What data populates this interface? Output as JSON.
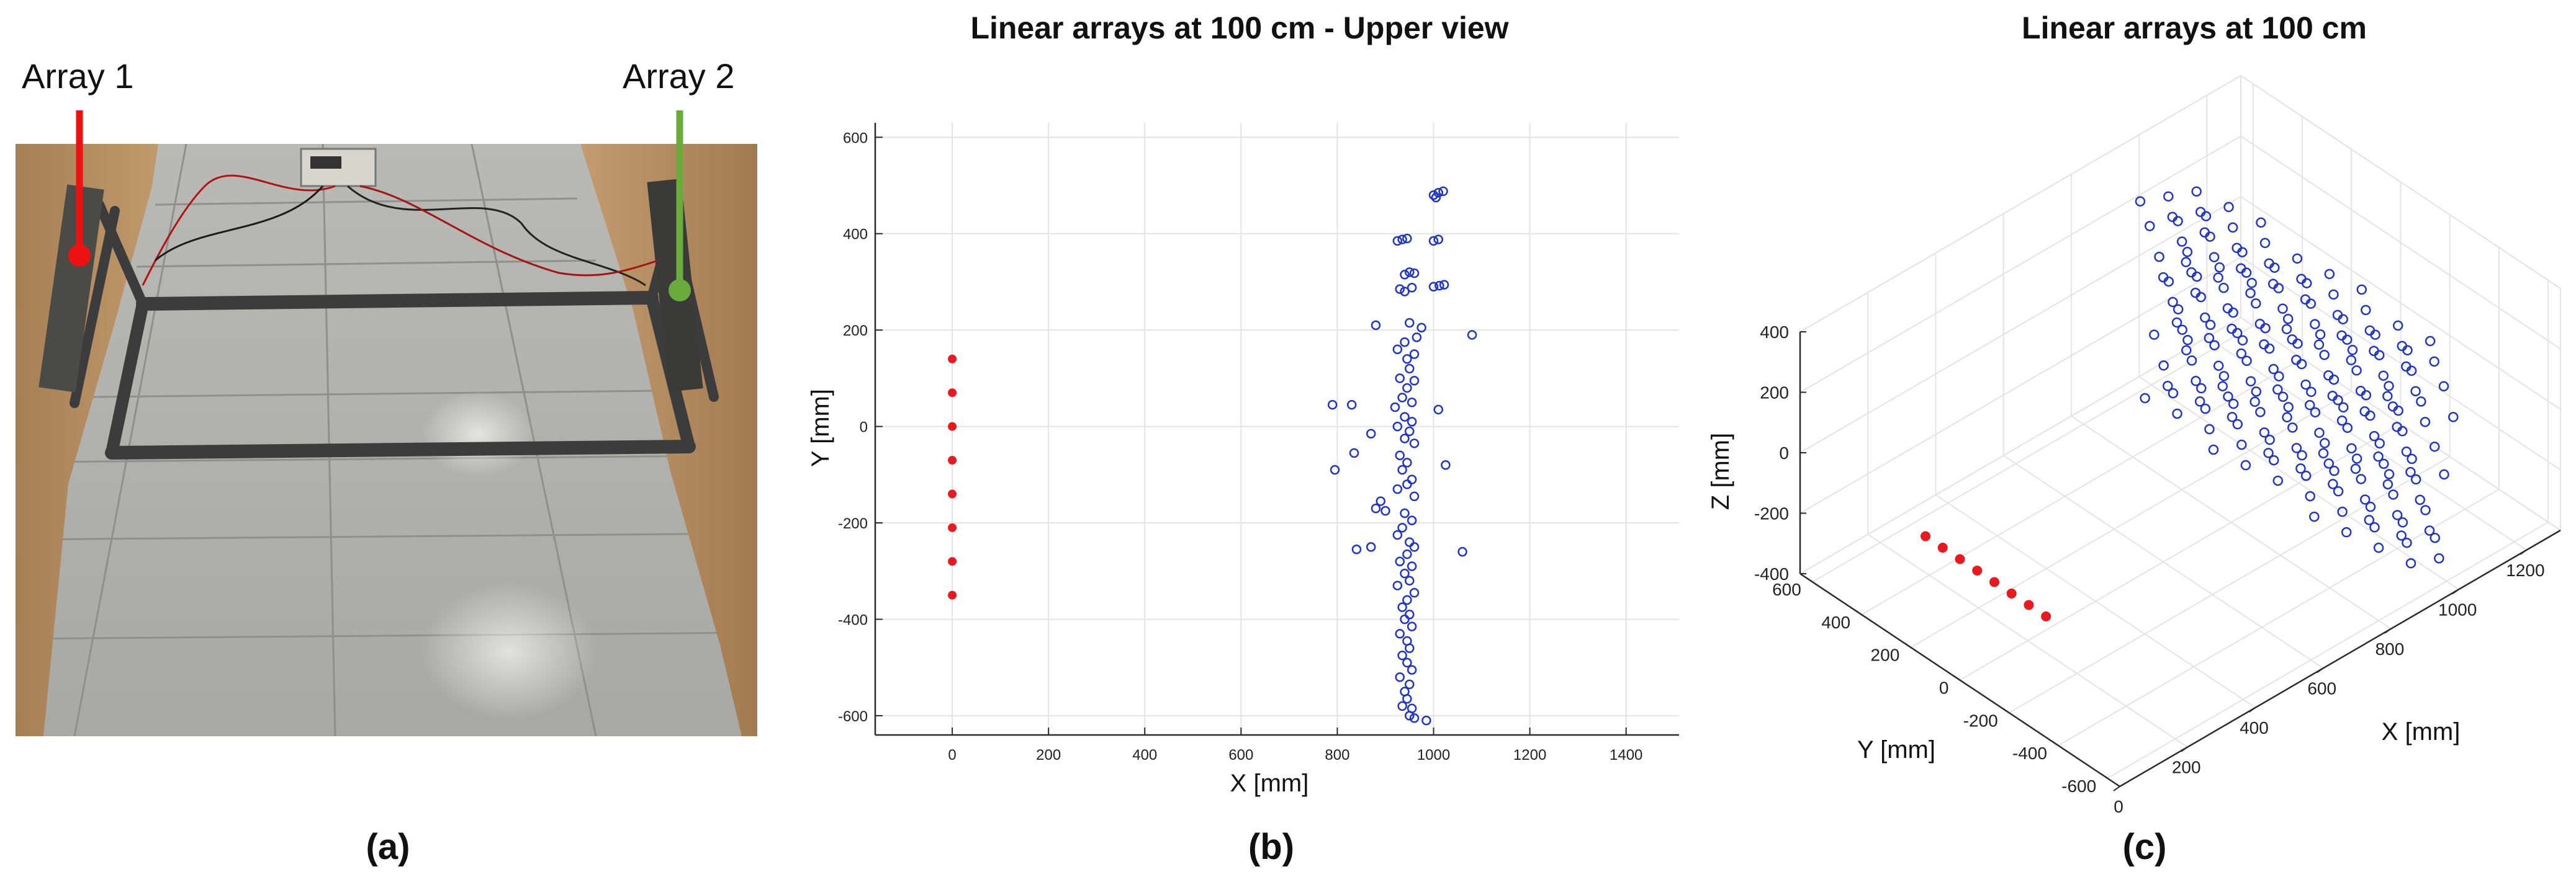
{
  "panel_a": {
    "caption": "(a)",
    "array1_label": "Array 1",
    "array2_label": "Array 2",
    "array1_color": "#ee1111",
    "array2_color": "#6aab3c"
  },
  "panel_b": {
    "caption": "(b)",
    "title": "Linear arrays at 100 cm - Upper view",
    "xlabel": "X [mm]",
    "ylabel": "Y [mm]",
    "xticks": [
      0,
      200,
      400,
      600,
      800,
      1000,
      1200,
      1400
    ],
    "yticks": [
      -600,
      -400,
      -200,
      0,
      200,
      400,
      600
    ]
  },
  "panel_c": {
    "caption": "(c)",
    "title": "Linear arrays at 100 cm",
    "xlabel": "X [mm]",
    "ylabel": "Y [mm]",
    "zlabel": "Z [mm]",
    "xticks": [
      0,
      200,
      400,
      600,
      800,
      1000,
      1200
    ],
    "yticks": [
      -600,
      -400,
      -200,
      0,
      200,
      400,
      600
    ],
    "zticks": [
      -400,
      -200,
      0,
      200,
      400
    ]
  },
  "colors": {
    "sensors": "#e8191f",
    "points": "#1f35c8",
    "grid": "#e4e4e4",
    "axis": "#2b2b2b"
  },
  "chart_data": [
    {
      "type": "scatter",
      "title": "Linear arrays at 100 cm - Upper view",
      "xlabel": "X [mm]",
      "ylabel": "Y [mm]",
      "xlim": [
        -160,
        1510
      ],
      "ylim": [
        -640,
        630
      ],
      "grid": true,
      "series": [
        {
          "marker": "filled-dot",
          "color": "#e8191f",
          "points": [
            [
              0,
              140
            ],
            [
              0,
              70
            ],
            [
              0,
              0
            ],
            [
              0,
              -70
            ],
            [
              0,
              -140
            ],
            [
              0,
              -210
            ],
            [
              0,
              -280
            ],
            [
              0,
              -350
            ]
          ]
        },
        {
          "marker": "open-circle",
          "color": "#1f35c8",
          "points": [
            [
              1000,
              480
            ],
            [
              1010,
              485
            ],
            [
              1020,
              488
            ],
            [
              1005,
              475
            ],
            [
              925,
              385
            ],
            [
              935,
              388
            ],
            [
              945,
              390
            ],
            [
              1000,
              385
            ],
            [
              1010,
              388
            ],
            [
              940,
              315
            ],
            [
              950,
              320
            ],
            [
              960,
              318
            ],
            [
              1000,
              290
            ],
            [
              1012,
              292
            ],
            [
              1022,
              294
            ],
            [
              930,
              285
            ],
            [
              940,
              280
            ],
            [
              955,
              288
            ],
            [
              880,
              210
            ],
            [
              950,
              215
            ],
            [
              975,
              205
            ],
            [
              1080,
              190
            ],
            [
              965,
              185
            ],
            [
              940,
              175
            ],
            [
              925,
              160
            ],
            [
              960,
              150
            ],
            [
              945,
              140
            ],
            [
              950,
              120
            ],
            [
              930,
              100
            ],
            [
              960,
              95
            ],
            [
              945,
              80
            ],
            [
              935,
              60
            ],
            [
              955,
              50
            ],
            [
              920,
              40
            ],
            [
              1010,
              35
            ],
            [
              940,
              20
            ],
            [
              955,
              10
            ],
            [
              830,
              45
            ],
            [
              790,
              45
            ],
            [
              925,
              0
            ],
            [
              950,
              -10
            ],
            [
              940,
              -25
            ],
            [
              960,
              -35
            ],
            [
              870,
              -15
            ],
            [
              835,
              -55
            ],
            [
              1025,
              -80
            ],
            [
              795,
              -90
            ],
            [
              930,
              -60
            ],
            [
              945,
              -75
            ],
            [
              935,
              -90
            ],
            [
              955,
              -110
            ],
            [
              945,
              -120
            ],
            [
              925,
              -130
            ],
            [
              960,
              -145
            ],
            [
              890,
              -155
            ],
            [
              880,
              -170
            ],
            [
              900,
              -175
            ],
            [
              940,
              -180
            ],
            [
              955,
              -195
            ],
            [
              935,
              -210
            ],
            [
              925,
              -225
            ],
            [
              950,
              -240
            ],
            [
              960,
              -250
            ],
            [
              840,
              -255
            ],
            [
              870,
              -250
            ],
            [
              1060,
              -260
            ],
            [
              945,
              -265
            ],
            [
              930,
              -280
            ],
            [
              955,
              -290
            ],
            [
              940,
              -305
            ],
            [
              950,
              -320
            ],
            [
              925,
              -330
            ],
            [
              960,
              -345
            ],
            [
              945,
              -360
            ],
            [
              935,
              -375
            ],
            [
              950,
              -390
            ],
            [
              940,
              -400
            ],
            [
              955,
              -415
            ],
            [
              930,
              -430
            ],
            [
              945,
              -445
            ],
            [
              950,
              -460
            ],
            [
              935,
              -475
            ],
            [
              945,
              -490
            ],
            [
              955,
              -505
            ],
            [
              930,
              -520
            ],
            [
              950,
              -535
            ],
            [
              940,
              -550
            ],
            [
              945,
              -565
            ],
            [
              935,
              -580
            ],
            [
              955,
              -585
            ],
            [
              950,
              -600
            ],
            [
              960,
              -605
            ],
            [
              985,
              -610
            ]
          ]
        }
      ]
    },
    {
      "type": "scatter3d",
      "title": "Linear arrays at 100 cm",
      "xlabel": "X [mm]",
      "ylabel": "Y [mm]",
      "zlabel": "Z [mm]",
      "xlim": [
        0,
        1300
      ],
      "ylim": [
        -650,
        650
      ],
      "zlim": [
        -400,
        400
      ],
      "grid": true,
      "series": [
        {
          "marker": "filled-dot",
          "color": "#e8191f",
          "points": [
            [
              0,
              140,
              0
            ],
            [
              0,
              70,
              0
            ],
            [
              0,
              0,
              0
            ],
            [
              0,
              -70,
              0
            ],
            [
              0,
              -140,
              0
            ],
            [
              0,
              -210,
              0
            ],
            [
              0,
              -280,
              0
            ],
            [
              0,
              -350,
              0
            ]
          ]
        },
        {
          "marker": "open-circle",
          "color": "#1f35c8",
          "description_rows": 7,
          "points_per_row": 30,
          "x_range": [
            880,
            1020
          ],
          "y_range": [
            -600,
            480
          ],
          "z_levels": [
            350,
            250,
            130,
            30,
            -80,
            -200,
            -310
          ]
        }
      ]
    }
  ]
}
